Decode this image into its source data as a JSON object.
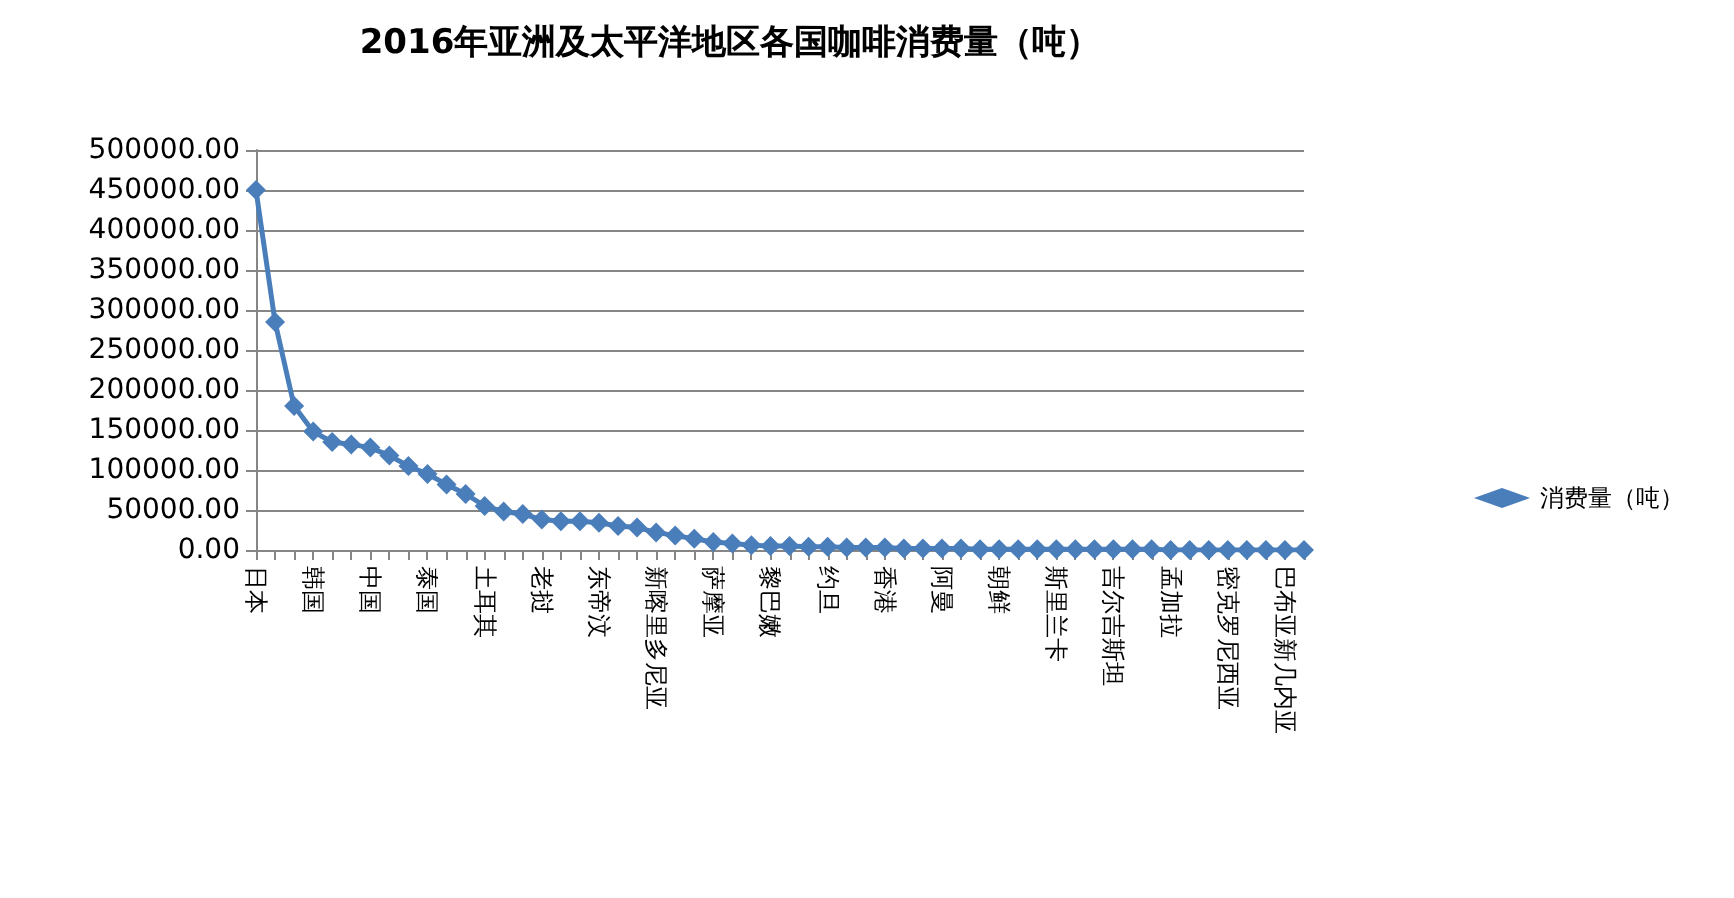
{
  "chart_data": {
    "type": "line",
    "title": "2016年亚洲及太平洋地区各国咖啡消费量（吨）",
    "categories": [
      "日本",
      null,
      null,
      "韩国",
      null,
      null,
      "中国",
      null,
      null,
      "泰国",
      null,
      null,
      "土耳其",
      null,
      null,
      "老挝",
      null,
      null,
      "东帝汶",
      null,
      null,
      "新喀里多尼亚",
      null,
      null,
      "萨摩亚",
      null,
      null,
      "黎巴嫩",
      null,
      null,
      "约旦",
      null,
      null,
      "香港",
      null,
      null,
      "阿曼",
      null,
      null,
      "朝鲜",
      null,
      null,
      "斯里兰卡",
      null,
      null,
      "吉尔吉斯坦",
      null,
      null,
      "孟加拉",
      null,
      null,
      "密克罗尼西亚",
      null,
      null,
      "巴布亚新几内亚",
      null
    ],
    "series": [
      {
        "name": "消费量（吨）",
        "color": "#4a7ebb",
        "values": [
          450000,
          285000,
          180000,
          148000,
          135000,
          132000,
          128000,
          118000,
          105000,
          95000,
          82000,
          70000,
          55000,
          48000,
          45000,
          38000,
          36000,
          36000,
          34000,
          30000,
          28000,
          22000,
          18000,
          14000,
          10000,
          8000,
          6000,
          5000,
          5000,
          4000,
          4000,
          3000,
          3000,
          3000,
          2000,
          2000,
          2000,
          2000,
          1000,
          1000,
          1000,
          1000,
          1000,
          1000,
          1000,
          1000,
          1000,
          1000,
          0,
          0,
          0,
          0,
          0,
          0,
          0,
          0
        ]
      }
    ],
    "ylim": [
      0,
      500000
    ],
    "yticks": [
      {
        "value": 0,
        "label": "0.00"
      },
      {
        "value": 50000,
        "label": "50000.00"
      },
      {
        "value": 100000,
        "label": "100000.00"
      },
      {
        "value": 150000,
        "label": "150000.00"
      },
      {
        "value": 200000,
        "label": "200000.00"
      },
      {
        "value": 250000,
        "label": "250000.00"
      },
      {
        "value": 300000,
        "label": "300000.00"
      },
      {
        "value": 350000,
        "label": "350000.00"
      },
      {
        "value": 400000,
        "label": "400000.00"
      },
      {
        "value": 450000,
        "label": "450000.00"
      },
      {
        "value": 500000,
        "label": "500000.00"
      }
    ],
    "grid": "y",
    "legend": "right",
    "marker": "diamond",
    "line_style": "solid"
  }
}
